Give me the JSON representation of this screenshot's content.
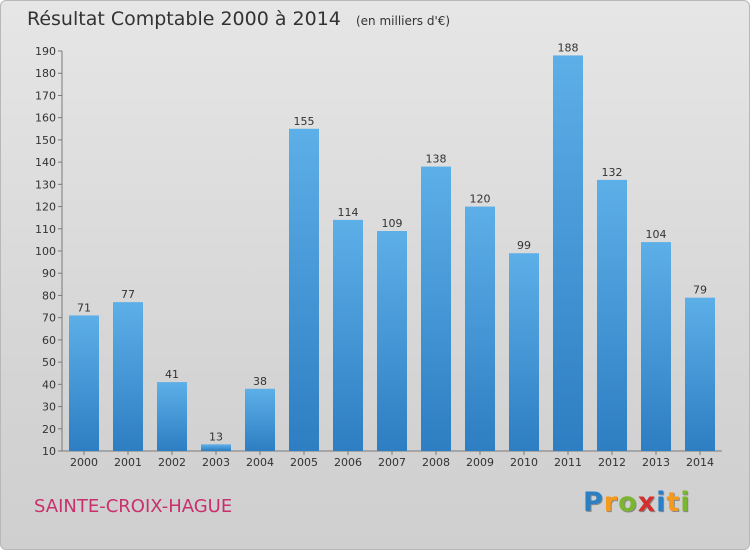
{
  "title": "Résultat Comptable 2000 à 2014",
  "subtitle": "(en milliers d'€)",
  "location": "SAINTE-CROIX-HAGUE",
  "logo": {
    "letters": [
      "P",
      "r",
      "o",
      "x",
      "i",
      "t",
      "i"
    ],
    "colors": [
      "#2b7fc5",
      "#f59a1b",
      "#7cb531",
      "#d22f2f",
      "#2b7fc5",
      "#f59a1b",
      "#7cb531"
    ]
  },
  "colors": {
    "bar_top": "#5dafe8",
    "bar_bottom": "#2d7ec2",
    "accent": "#c8306c"
  },
  "chart_data": {
    "type": "bar",
    "title": "Résultat Comptable 2000 à 2014",
    "xlabel": "",
    "ylabel": "",
    "categories": [
      "2000",
      "2001",
      "2002",
      "2003",
      "2004",
      "2005",
      "2006",
      "2007",
      "2008",
      "2009",
      "2010",
      "2011",
      "2012",
      "2013",
      "2014"
    ],
    "values": [
      71,
      77,
      41,
      13,
      38,
      155,
      114,
      109,
      138,
      120,
      99,
      188,
      132,
      104,
      79
    ],
    "ylim": [
      10,
      190
    ],
    "yticks": [
      10,
      20,
      30,
      40,
      50,
      60,
      70,
      80,
      90,
      100,
      110,
      120,
      130,
      140,
      150,
      160,
      170,
      180,
      190
    ],
    "grid": false,
    "data_labels": true
  }
}
